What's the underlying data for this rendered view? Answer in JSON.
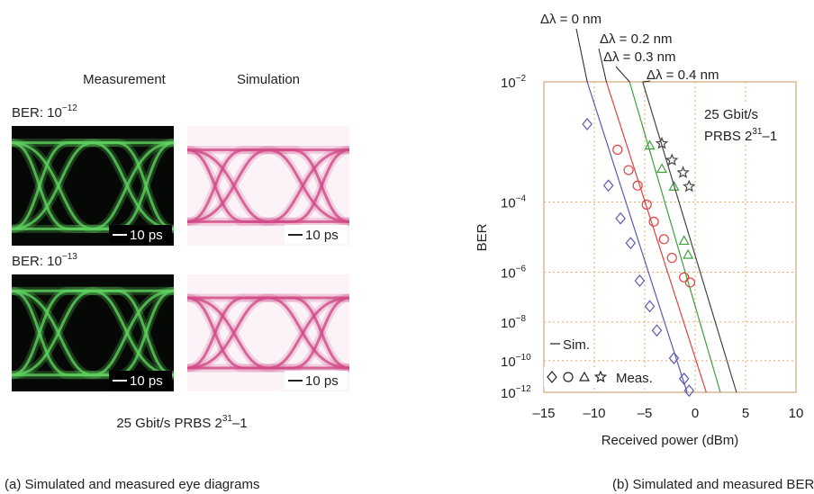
{
  "figure": {
    "left": {
      "col_labels": [
        "Measurement",
        "Simulation"
      ],
      "rows": [
        {
          "ber": {
            "text": "BER: 10",
            "exponent": "−12"
          },
          "scale": [
            "10 ps",
            "10 ps"
          ]
        },
        {
          "ber": {
            "text": "BER: 10",
            "exponent": "−13"
          },
          "scale": [
            "10 ps",
            "10 ps"
          ]
        }
      ],
      "footer": {
        "text": "25 Gbit/s PRBS 2",
        "exponent": "31",
        "tail": "–1"
      },
      "caption": "(a) Simulated and measured eye diagrams"
    },
    "caption_b": "(b) Simulated and measured BERs"
  },
  "chart_data": {
    "type": "ber",
    "x_label": "Received power (dBm)",
    "y_label": "BER",
    "yscale": "double-log",
    "grid": true,
    "xlim": [
      -15,
      10
    ],
    "xticks": [
      {
        "value": -15,
        "label": "–15"
      },
      {
        "value": -10,
        "label": "–10"
      },
      {
        "value": -5,
        "label": "–5"
      },
      0,
      5,
      10
    ],
    "ylim": [
      0.01,
      1e-12
    ],
    "yticks": [
      {
        "value": 0.01,
        "label": "10",
        "exponent": "−2"
      },
      {
        "value": 0.0001,
        "label": "10",
        "exponent": "−4"
      },
      {
        "value": 1e-06,
        "label": "10",
        "exponent": "−6"
      },
      {
        "value": 1e-08,
        "label": "10",
        "exponent": "−8"
      },
      {
        "value": 1e-10,
        "label": "10",
        "exponent": "−10"
      },
      {
        "value": 1e-12,
        "label": "10",
        "exponent": "−12"
      }
    ],
    "annotations": {
      "rate": "25 Gbit/s",
      "prbs": {
        "text": "PRBS 2",
        "exponent": "31",
        "tail": "–1"
      }
    },
    "legend": {
      "sim": "Sim.",
      "meas": "Meas."
    },
    "series": [
      {
        "name": "Δλ = 0 nm",
        "color": "#5a5ab4",
        "marker": "diamond",
        "line_x": [
          -10.7,
          -0.8
        ],
        "line_y": [
          0.01,
          1e-12
        ],
        "x": [
          -10.7,
          -8.6,
          -7.4,
          -6.4,
          -5.5,
          -4.5,
          -3.8,
          -2.1,
          -1.1,
          -0.6
        ],
        "y": [
          0.0028,
          0.00023,
          4e-05,
          8.5e-06,
          5e-07,
          5e-08,
          4e-09,
          1.4e-10,
          8e-12,
          1.3e-12
        ]
      },
      {
        "name": "Δλ = 0.2 nm",
        "color": "#e04040",
        "marker": "circle",
        "line_x": [
          -8.8,
          1.1
        ],
        "line_y": [
          0.01,
          1e-12
        ],
        "x": [
          -7.7,
          -6.6,
          -5.7,
          -4.8,
          -4.1,
          -3.1,
          -2.3,
          -1.1,
          -0.5
        ],
        "y": [
          0.0011,
          0.00047,
          0.00023,
          8.7e-05,
          3.3e-05,
          1.1e-05,
          3e-06,
          6.6e-07,
          4.3e-07
        ]
      },
      {
        "name": "Δλ = 0.3 nm",
        "color": "#3aa03a",
        "marker": "triangle",
        "line_x": [
          -6.5,
          2.5
        ],
        "line_y": [
          0.01,
          1e-12
        ],
        "x": [
          -4.5,
          -3.3,
          -2.1,
          -1.1,
          -0.7
        ],
        "y": [
          0.0013,
          0.0005,
          0.00022,
          1e-05,
          3.8e-06
        ]
      },
      {
        "name": "Δλ = 0.4 nm",
        "color": "#444444",
        "marker": "star",
        "line_x": [
          -5.2,
          4.1
        ],
        "line_y": [
          0.01,
          1e-12
        ],
        "x": [
          -3.3,
          -2.3,
          -1.2,
          -0.6
        ],
        "y": [
          0.0014,
          0.00072,
          0.00042,
          0.00022
        ]
      }
    ]
  }
}
